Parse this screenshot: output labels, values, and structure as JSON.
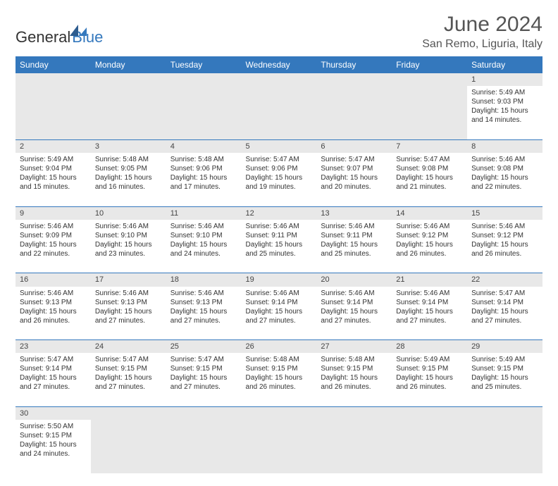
{
  "logo": {
    "text1": "General",
    "text2": "Blue"
  },
  "title": "June 2024",
  "location": "San Remo, Liguria, Italy",
  "header_bg": "#3478bd",
  "header_fg": "#ffffff",
  "day_bg": "#e8e8e8",
  "border_color": "#3478bd",
  "weekdays": [
    "Sunday",
    "Monday",
    "Tuesday",
    "Wednesday",
    "Thursday",
    "Friday",
    "Saturday"
  ],
  "weeks": [
    [
      null,
      null,
      null,
      null,
      null,
      null,
      {
        "n": "1",
        "sr": "Sunrise: 5:49 AM",
        "ss": "Sunset: 9:03 PM",
        "dl": "Daylight: 15 hours and 14 minutes."
      }
    ],
    [
      {
        "n": "2",
        "sr": "Sunrise: 5:49 AM",
        "ss": "Sunset: 9:04 PM",
        "dl": "Daylight: 15 hours and 15 minutes."
      },
      {
        "n": "3",
        "sr": "Sunrise: 5:48 AM",
        "ss": "Sunset: 9:05 PM",
        "dl": "Daylight: 15 hours and 16 minutes."
      },
      {
        "n": "4",
        "sr": "Sunrise: 5:48 AM",
        "ss": "Sunset: 9:06 PM",
        "dl": "Daylight: 15 hours and 17 minutes."
      },
      {
        "n": "5",
        "sr": "Sunrise: 5:47 AM",
        "ss": "Sunset: 9:06 PM",
        "dl": "Daylight: 15 hours and 19 minutes."
      },
      {
        "n": "6",
        "sr": "Sunrise: 5:47 AM",
        "ss": "Sunset: 9:07 PM",
        "dl": "Daylight: 15 hours and 20 minutes."
      },
      {
        "n": "7",
        "sr": "Sunrise: 5:47 AM",
        "ss": "Sunset: 9:08 PM",
        "dl": "Daylight: 15 hours and 21 minutes."
      },
      {
        "n": "8",
        "sr": "Sunrise: 5:46 AM",
        "ss": "Sunset: 9:08 PM",
        "dl": "Daylight: 15 hours and 22 minutes."
      }
    ],
    [
      {
        "n": "9",
        "sr": "Sunrise: 5:46 AM",
        "ss": "Sunset: 9:09 PM",
        "dl": "Daylight: 15 hours and 22 minutes."
      },
      {
        "n": "10",
        "sr": "Sunrise: 5:46 AM",
        "ss": "Sunset: 9:10 PM",
        "dl": "Daylight: 15 hours and 23 minutes."
      },
      {
        "n": "11",
        "sr": "Sunrise: 5:46 AM",
        "ss": "Sunset: 9:10 PM",
        "dl": "Daylight: 15 hours and 24 minutes."
      },
      {
        "n": "12",
        "sr": "Sunrise: 5:46 AM",
        "ss": "Sunset: 9:11 PM",
        "dl": "Daylight: 15 hours and 25 minutes."
      },
      {
        "n": "13",
        "sr": "Sunrise: 5:46 AM",
        "ss": "Sunset: 9:11 PM",
        "dl": "Daylight: 15 hours and 25 minutes."
      },
      {
        "n": "14",
        "sr": "Sunrise: 5:46 AM",
        "ss": "Sunset: 9:12 PM",
        "dl": "Daylight: 15 hours and 26 minutes."
      },
      {
        "n": "15",
        "sr": "Sunrise: 5:46 AM",
        "ss": "Sunset: 9:12 PM",
        "dl": "Daylight: 15 hours and 26 minutes."
      }
    ],
    [
      {
        "n": "16",
        "sr": "Sunrise: 5:46 AM",
        "ss": "Sunset: 9:13 PM",
        "dl": "Daylight: 15 hours and 26 minutes."
      },
      {
        "n": "17",
        "sr": "Sunrise: 5:46 AM",
        "ss": "Sunset: 9:13 PM",
        "dl": "Daylight: 15 hours and 27 minutes."
      },
      {
        "n": "18",
        "sr": "Sunrise: 5:46 AM",
        "ss": "Sunset: 9:13 PM",
        "dl": "Daylight: 15 hours and 27 minutes."
      },
      {
        "n": "19",
        "sr": "Sunrise: 5:46 AM",
        "ss": "Sunset: 9:14 PM",
        "dl": "Daylight: 15 hours and 27 minutes."
      },
      {
        "n": "20",
        "sr": "Sunrise: 5:46 AM",
        "ss": "Sunset: 9:14 PM",
        "dl": "Daylight: 15 hours and 27 minutes."
      },
      {
        "n": "21",
        "sr": "Sunrise: 5:46 AM",
        "ss": "Sunset: 9:14 PM",
        "dl": "Daylight: 15 hours and 27 minutes."
      },
      {
        "n": "22",
        "sr": "Sunrise: 5:47 AM",
        "ss": "Sunset: 9:14 PM",
        "dl": "Daylight: 15 hours and 27 minutes."
      }
    ],
    [
      {
        "n": "23",
        "sr": "Sunrise: 5:47 AM",
        "ss": "Sunset: 9:14 PM",
        "dl": "Daylight: 15 hours and 27 minutes."
      },
      {
        "n": "24",
        "sr": "Sunrise: 5:47 AM",
        "ss": "Sunset: 9:15 PM",
        "dl": "Daylight: 15 hours and 27 minutes."
      },
      {
        "n": "25",
        "sr": "Sunrise: 5:47 AM",
        "ss": "Sunset: 9:15 PM",
        "dl": "Daylight: 15 hours and 27 minutes."
      },
      {
        "n": "26",
        "sr": "Sunrise: 5:48 AM",
        "ss": "Sunset: 9:15 PM",
        "dl": "Daylight: 15 hours and 26 minutes."
      },
      {
        "n": "27",
        "sr": "Sunrise: 5:48 AM",
        "ss": "Sunset: 9:15 PM",
        "dl": "Daylight: 15 hours and 26 minutes."
      },
      {
        "n": "28",
        "sr": "Sunrise: 5:49 AM",
        "ss": "Sunset: 9:15 PM",
        "dl": "Daylight: 15 hours and 26 minutes."
      },
      {
        "n": "29",
        "sr": "Sunrise: 5:49 AM",
        "ss": "Sunset: 9:15 PM",
        "dl": "Daylight: 15 hours and 25 minutes."
      }
    ],
    [
      {
        "n": "30",
        "sr": "Sunrise: 5:50 AM",
        "ss": "Sunset: 9:15 PM",
        "dl": "Daylight: 15 hours and 24 minutes."
      },
      null,
      null,
      null,
      null,
      null,
      null
    ]
  ]
}
